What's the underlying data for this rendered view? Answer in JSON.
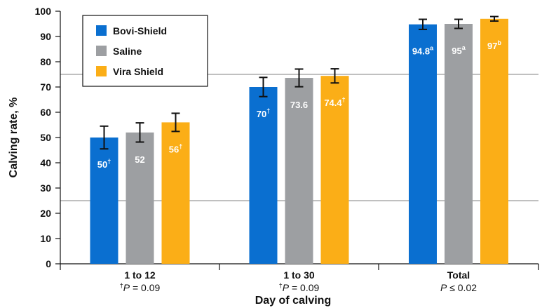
{
  "chart_data": {
    "type": "bar",
    "title": "",
    "xlabel": "Day of calving",
    "ylabel": "Calving rate, %",
    "ylim": [
      0,
      100
    ],
    "yticks": [
      0,
      10,
      20,
      30,
      40,
      50,
      60,
      70,
      80,
      90,
      100
    ],
    "grid": "horizontal lines at 25 and 75",
    "legend": "top-left",
    "categories": [
      "1 to 12",
      "1 to 30",
      "Total"
    ],
    "notes": [
      {
        "prefix": "†",
        "p": "P",
        "rest": " = 0.09"
      },
      {
        "prefix": "†",
        "p": "P",
        "rest": " = 0.09"
      },
      {
        "prefix": "",
        "p": "P",
        "rest": " ≤ 0.02"
      }
    ],
    "series": [
      {
        "name": "Bovi-Shield",
        "color": "#0a6fd0",
        "values": [
          50,
          70,
          94.8
        ],
        "errors": [
          4.5,
          3.8,
          2.0
        ],
        "labels": [
          "50",
          "70",
          "94.8"
        ],
        "superscripts": [
          "†",
          "†",
          "a"
        ]
      },
      {
        "name": "Saline",
        "color": "#9d9fa2",
        "values": [
          52,
          73.6,
          95
        ],
        "errors": [
          3.8,
          3.5,
          1.8
        ],
        "labels": [
          "52",
          "73.6",
          "95"
        ],
        "superscripts": [
          "",
          "",
          "a"
        ]
      },
      {
        "name": "Vira Shield",
        "color": "#fbae17",
        "values": [
          56,
          74.4,
          97
        ],
        "errors": [
          3.6,
          2.8,
          0.9
        ],
        "labels": [
          "56",
          "74.4",
          "97"
        ],
        "superscripts": [
          "†",
          "†",
          "b"
        ]
      }
    ]
  }
}
